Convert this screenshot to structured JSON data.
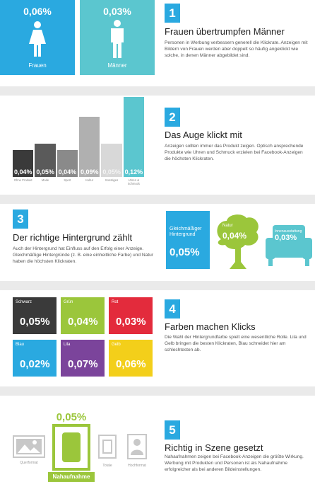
{
  "colors": {
    "accent_blue": "#2aa9e0",
    "teal": "#5bc6cf",
    "lime": "#9bc63b",
    "dark": "#3a3a3a",
    "red": "#e32b3c",
    "purple": "#7b449b",
    "yellow": "#f3cf1a",
    "gray_gap": "#eaeaea"
  },
  "section1": {
    "number": "1",
    "title": "Frauen übertrumpfen Männer",
    "text": "Personen in Werbung verbessern generell die Klickrate. Anzeigen mit Bildern von Frauen werden aber doppelt so häufig angeklickt wie solche, in denen Männer abgebildet sind.",
    "women": {
      "value": "0,06%",
      "label": "Frauen",
      "icon": "woman-icon"
    },
    "men": {
      "value": "0,03%",
      "label": "Männer",
      "icon": "man-icon"
    }
  },
  "section2": {
    "number": "2",
    "title": "Das Auge klickt mit",
    "text": "Anzeigen sollten immer das Produkt zeigen. Optisch ansprechende Produkte wie Uhren und Schmuck erzielen bei Facebook-Anzeigen die höchsten Klickraten."
  },
  "chart_data": {
    "type": "bar",
    "categories": [
      "Ohne Produkt",
      "Mode",
      "Sport",
      "Kultur",
      "Sonstiges",
      "Uhren & Schmuck"
    ],
    "values": [
      0.04,
      0.05,
      0.04,
      0.09,
      0.05,
      0.12
    ],
    "value_labels": [
      "0,04",
      "0,05",
      "0,04",
      "0,09",
      "0,05",
      "0,12"
    ],
    "unit": "%",
    "ylim": [
      0,
      0.12
    ]
  },
  "section3": {
    "number": "3",
    "title": "Der richtige Hintergrund zählt",
    "text": "Auch der Hintergrund hat Einfluss auf den Erfolg einer Anzeige. Gleichmäßige Hintergründe (z. B. eine einheitliche Farbe) und Natur haben die höchsten Klickraten.",
    "uniform": {
      "label": "Gleichmäßiger Hintergrund",
      "value": "0,05%"
    },
    "nature": {
      "label": "Natur",
      "value": "0,04%",
      "icon": "tree-icon"
    },
    "interior": {
      "label": "Innenausstattung",
      "value": "0,03%",
      "icon": "armchair-icon"
    }
  },
  "section4": {
    "number": "4",
    "title": "Farben machen Klicks",
    "text": "Die Wahl der Hintergrundfarbe spielt eine wesentliche Rolle. Lila und Gelb bringen die besten Klickraten, Blau schneidet hier am schlechtesten ab.",
    "colors": [
      {
        "label": "Schwarz",
        "value": "0,05%",
        "color": "#3a3a3a"
      },
      {
        "label": "Grün",
        "value": "0,04%",
        "color": "#9bc63b"
      },
      {
        "label": "Rot",
        "value": "0,03%",
        "color": "#e32b3c"
      },
      {
        "label": "Blau",
        "value": "0,02%",
        "color": "#2aa9e0"
      },
      {
        "label": "Lila",
        "value": "0,07%",
        "color": "#7b449b"
      },
      {
        "label": "Gelb",
        "value": "0,06%",
        "color": "#f3cf1a"
      }
    ]
  },
  "section5": {
    "number": "5",
    "title": "Richtig in Szene gesetzt",
    "text": "Nahaufnahmen zeigen bei Facebook-Anzeigen die größte Wirkung. Werbung mit Produkten und Personen ist als Nahaufnahme erfolgreicher als bei anderen Bildeinstellungen.",
    "top_value": "0,05%",
    "formats": {
      "landscape": "Querformat",
      "closeup": "Nahaufnahme",
      "total": "Totale",
      "portrait": "Hochformat"
    }
  }
}
